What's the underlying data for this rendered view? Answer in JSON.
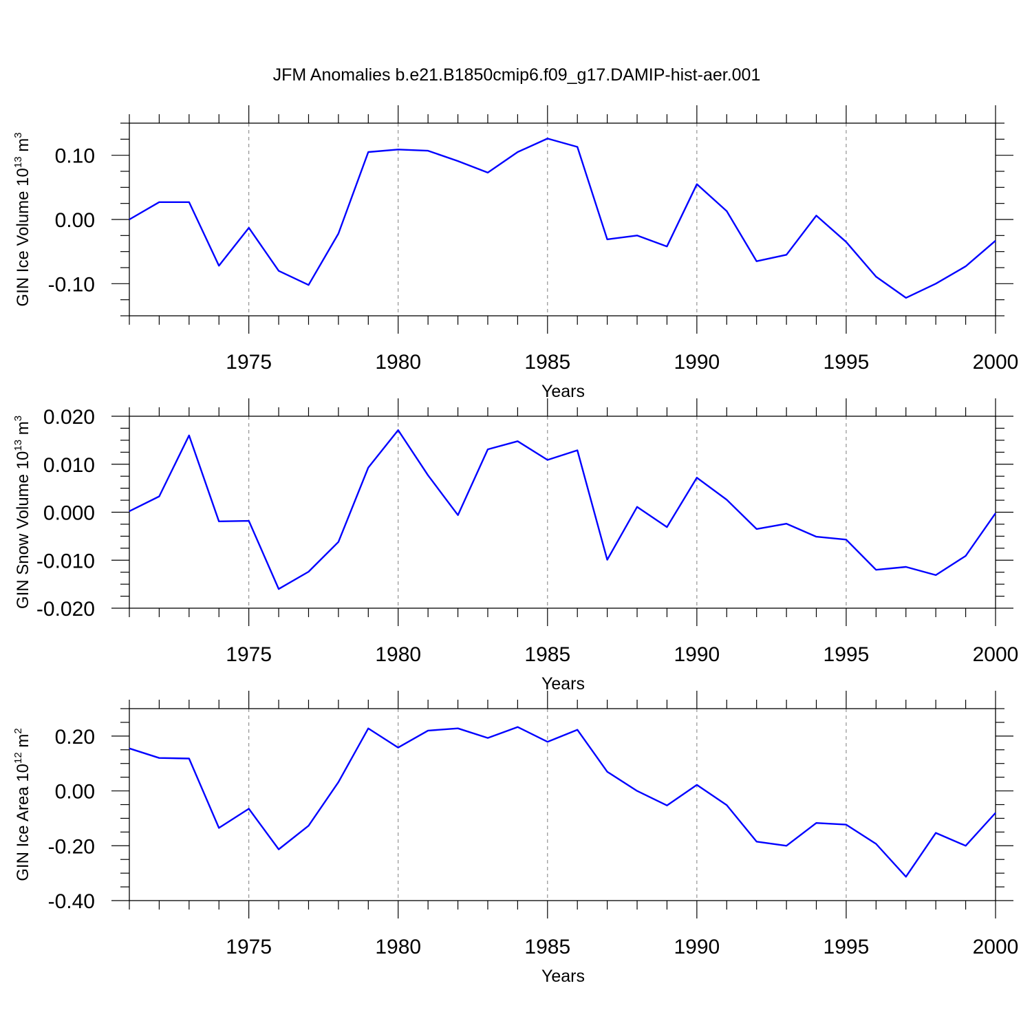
{
  "title": "JFM Anomalies b.e21.B1850cmip6.f09_g17.DAMIP-hist-aer.001",
  "colors": {
    "line": "#0000ff",
    "axis": "#000000",
    "grid": "#888888"
  },
  "chart_data": [
    {
      "type": "line",
      "xlabel": "Years",
      "ylabel": {
        "text": "GIN Ice Volume 10",
        "sup": "13",
        "unit": " m",
        "unit_sup": "3"
      },
      "xlim": [
        1971,
        2000
      ],
      "ylim": [
        -0.15,
        0.15
      ],
      "xticks": [
        1975,
        1980,
        1985,
        1990,
        1995,
        2000
      ],
      "yticks": [
        0.1,
        0.0,
        -0.1
      ],
      "ytick_labels": [
        "0.10",
        "0.00",
        "-0.10"
      ],
      "grid": "vertical dashed at major x ticks",
      "x": [
        1971,
        1972,
        1973,
        1974,
        1975,
        1976,
        1977,
        1978,
        1979,
        1980,
        1981,
        1982,
        1983,
        1984,
        1985,
        1986,
        1987,
        1988,
        1989,
        1990,
        1991,
        1992,
        1993,
        1994,
        1995,
        1996,
        1997,
        1998,
        1999,
        2000
      ],
      "values": [
        0.0,
        0.027,
        0.027,
        -0.072,
        -0.013,
        -0.08,
        -0.102,
        -0.022,
        0.105,
        0.109,
        0.107,
        0.091,
        0.073,
        0.105,
        0.126,
        0.113,
        -0.031,
        -0.025,
        -0.042,
        0.055,
        0.013,
        -0.065,
        -0.055,
        0.006,
        -0.035,
        -0.089,
        -0.122,
        -0.1,
        -0.073,
        -0.033
      ]
    },
    {
      "type": "line",
      "xlabel": "Years",
      "ylabel": {
        "text": "GIN Snow Volume 10",
        "sup": "13",
        "unit": " m",
        "unit_sup": "3"
      },
      "xlim": [
        1971,
        2000
      ],
      "ylim": [
        -0.02,
        0.02
      ],
      "xticks": [
        1975,
        1980,
        1985,
        1990,
        1995,
        2000
      ],
      "yticks": [
        0.02,
        0.01,
        0.0,
        -0.01,
        -0.02
      ],
      "ytick_labels": [
        "0.020",
        "0.010",
        "0.000",
        "-0.010",
        "-0.020"
      ],
      "grid": "vertical dashed at major x ticks",
      "x": [
        1971,
        1972,
        1973,
        1974,
        1975,
        1976,
        1977,
        1978,
        1979,
        1980,
        1981,
        1982,
        1983,
        1984,
        1985,
        1986,
        1987,
        1988,
        1989,
        1990,
        1991,
        1992,
        1993,
        1994,
        1995,
        1996,
        1997,
        1998,
        1999,
        2000
      ],
      "values": [
        0.0002,
        0.0033,
        0.016,
        -0.0019,
        -0.0018,
        -0.016,
        -0.0124,
        -0.0062,
        0.0093,
        0.0171,
        0.0077,
        -0.0006,
        0.0131,
        0.0148,
        0.0109,
        0.0129,
        -0.0099,
        0.0011,
        -0.0031,
        0.0072,
        0.0026,
        -0.0035,
        -0.0024,
        -0.0051,
        -0.0057,
        -0.012,
        -0.0114,
        -0.0131,
        -0.0091,
        -0.0002
      ]
    },
    {
      "type": "line",
      "xlabel": "Years",
      "ylabel": {
        "text": "GIN Ice Area 10",
        "sup": "12",
        "unit": " m",
        "unit_sup": "2"
      },
      "xlim": [
        1971,
        2000
      ],
      "ylim": [
        -0.4,
        0.3
      ],
      "xticks": [
        1975,
        1980,
        1985,
        1990,
        1995,
        2000
      ],
      "yticks": [
        0.2,
        0.0,
        -0.2,
        -0.4
      ],
      "ytick_labels": [
        "0.20",
        "0.00",
        "-0.20",
        "-0.40"
      ],
      "grid": "vertical dashed at major x ticks",
      "x": [
        1971,
        1972,
        1973,
        1974,
        1975,
        1976,
        1977,
        1978,
        1979,
        1980,
        1981,
        1982,
        1983,
        1984,
        1985,
        1986,
        1987,
        1988,
        1989,
        1990,
        1991,
        1992,
        1993,
        1994,
        1995,
        1996,
        1997,
        1998,
        1999,
        2000
      ],
      "values": [
        0.155,
        0.12,
        0.118,
        -0.135,
        -0.065,
        -0.213,
        -0.127,
        0.032,
        0.228,
        0.158,
        0.22,
        0.228,
        0.193,
        0.233,
        0.179,
        0.223,
        0.07,
        0.0,
        -0.053,
        0.022,
        -0.052,
        -0.185,
        -0.2,
        -0.117,
        -0.123,
        -0.193,
        -0.313,
        -0.153,
        -0.2,
        -0.08
      ]
    }
  ]
}
